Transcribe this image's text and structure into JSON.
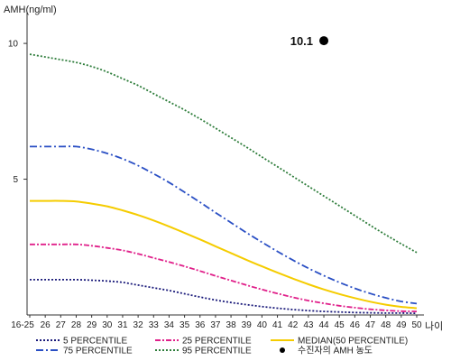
{
  "chart_data": {
    "type": "line",
    "ylabel": "AMH(ng/ml)",
    "xlabel": "나이",
    "x_ticks": [
      "16-25",
      "26",
      "27",
      "28",
      "29",
      "30",
      "31",
      "32",
      "33",
      "34",
      "35",
      "36",
      "37",
      "38",
      "39",
      "40",
      "41",
      "42",
      "43",
      "44",
      "45",
      "46",
      "47",
      "48",
      "49",
      "50"
    ],
    "y_ticks": [
      "10",
      "5"
    ],
    "ylim": [
      0,
      11
    ],
    "grid": false,
    "legend_position": "bottom",
    "series": [
      {
        "name": "5 PERCENTILE",
        "color": "#1a1a7a",
        "dash": "2,2",
        "values": [
          1.3,
          1.3,
          1.3,
          1.3,
          1.28,
          1.25,
          1.2,
          1.1,
          1.0,
          0.9,
          0.78,
          0.66,
          0.55,
          0.46,
          0.38,
          0.31,
          0.25,
          0.2,
          0.16,
          0.13,
          0.11,
          0.09,
          0.08,
          0.07,
          0.07,
          0.06
        ]
      },
      {
        "name": "25 PERCENTILE",
        "color": "#e0208a",
        "dash": "6,2,2,2",
        "values": [
          2.6,
          2.6,
          2.6,
          2.6,
          2.55,
          2.47,
          2.38,
          2.25,
          2.1,
          1.95,
          1.79,
          1.62,
          1.44,
          1.27,
          1.1,
          0.94,
          0.79,
          0.65,
          0.53,
          0.43,
          0.34,
          0.27,
          0.21,
          0.17,
          0.14,
          0.13
        ]
      },
      {
        "name": "MEDIAN(50 PERCENTILE)",
        "color": "#f5cc00",
        "dash": "",
        "values": [
          4.2,
          4.2,
          4.2,
          4.18,
          4.1,
          4.0,
          3.85,
          3.68,
          3.48,
          3.26,
          3.02,
          2.78,
          2.53,
          2.28,
          2.03,
          1.79,
          1.56,
          1.34,
          1.13,
          0.94,
          0.77,
          0.62,
          0.49,
          0.38,
          0.3,
          0.25
        ]
      },
      {
        "name": "75 PERCENTILE",
        "color": "#2a4fc4",
        "dash": "8,3,2,3",
        "values": [
          6.2,
          6.2,
          6.2,
          6.2,
          6.1,
          5.95,
          5.75,
          5.5,
          5.2,
          4.88,
          4.52,
          4.15,
          3.77,
          3.4,
          3.03,
          2.68,
          2.34,
          2.02,
          1.72,
          1.45,
          1.2,
          0.98,
          0.79,
          0.63,
          0.5,
          0.42
        ]
      },
      {
        "name": "95 PERCENTILE",
        "color": "#2e7d3b",
        "dash": "2,2",
        "values": [
          9.6,
          9.5,
          9.4,
          9.3,
          9.15,
          8.95,
          8.7,
          8.45,
          8.15,
          7.85,
          7.55,
          7.22,
          6.88,
          6.53,
          6.18,
          5.82,
          5.46,
          5.1,
          4.74,
          4.38,
          4.02,
          3.66,
          3.3,
          2.95,
          2.62,
          2.3
        ]
      }
    ],
    "annotation": {
      "label": "10.1",
      "x": "44",
      "y": 10.1,
      "color": "#000000"
    },
    "marker_legend": "수진자의 AMH 농도"
  }
}
